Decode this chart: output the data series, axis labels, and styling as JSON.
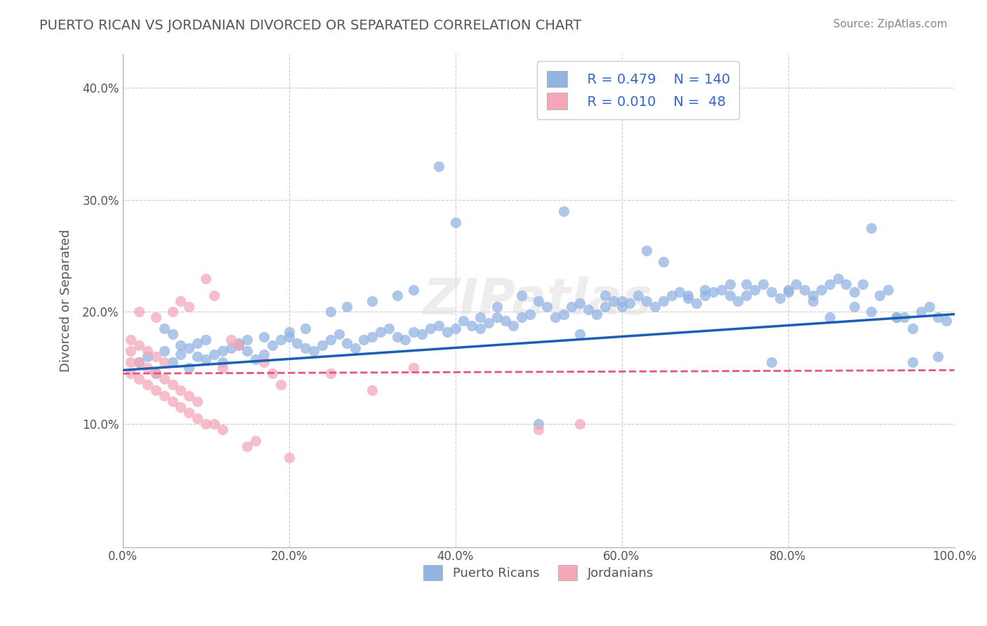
{
  "title": "PUERTO RICAN VS JORDANIAN DIVORCED OR SEPARATED CORRELATION CHART",
  "source_text": "Source: ZipAtlas.com",
  "xlabel": "",
  "ylabel": "Divorced or Separated",
  "xlim": [
    0.0,
    1.0
  ],
  "ylim": [
    -0.01,
    0.43
  ],
  "xticks": [
    0.0,
    0.2,
    0.4,
    0.6,
    0.8,
    1.0
  ],
  "yticks": [
    0.1,
    0.2,
    0.3,
    0.4
  ],
  "xticklabels": [
    "0.0%",
    "20.0%",
    "40.0%",
    "60.0%",
    "80.0%",
    "100.0%"
  ],
  "yticklabels": [
    "10.0%",
    "20.0%",
    "30.0%",
    "40.0%"
  ],
  "watermark": "ZIPatlas",
  "legend_labels": [
    "Puerto Ricans",
    "Jordanians"
  ],
  "blue_R": "0.479",
  "blue_N": "140",
  "pink_R": "0.010",
  "pink_N": "48",
  "blue_color": "#92b4e3",
  "pink_color": "#f4a7b9",
  "blue_line_color": "#1a5fb4",
  "pink_line_color": "#e75480",
  "title_color": "#555555",
  "axis_label_color": "#555555",
  "legend_text_color": "#3366cc",
  "grid_color": "#cccccc",
  "background_color": "#ffffff",
  "blue_scatter_x": [
    0.02,
    0.03,
    0.04,
    0.05,
    0.06,
    0.07,
    0.08,
    0.09,
    0.1,
    0.11,
    0.12,
    0.13,
    0.14,
    0.15,
    0.16,
    0.17,
    0.18,
    0.19,
    0.2,
    0.21,
    0.22,
    0.23,
    0.24,
    0.25,
    0.26,
    0.27,
    0.28,
    0.29,
    0.3,
    0.31,
    0.32,
    0.33,
    0.34,
    0.35,
    0.36,
    0.37,
    0.38,
    0.39,
    0.4,
    0.41,
    0.42,
    0.43,
    0.44,
    0.45,
    0.46,
    0.47,
    0.48,
    0.49,
    0.5,
    0.51,
    0.52,
    0.53,
    0.54,
    0.55,
    0.56,
    0.57,
    0.58,
    0.59,
    0.6,
    0.61,
    0.62,
    0.63,
    0.64,
    0.65,
    0.66,
    0.67,
    0.68,
    0.69,
    0.7,
    0.71,
    0.72,
    0.73,
    0.74,
    0.75,
    0.76,
    0.77,
    0.78,
    0.79,
    0.8,
    0.81,
    0.82,
    0.83,
    0.84,
    0.85,
    0.86,
    0.87,
    0.88,
    0.89,
    0.9,
    0.91,
    0.92,
    0.93,
    0.94,
    0.95,
    0.96,
    0.97,
    0.98,
    0.99,
    0.05,
    0.06,
    0.07,
    0.08,
    0.09,
    0.1,
    0.12,
    0.14,
    0.15,
    0.17,
    0.2,
    0.22,
    0.25,
    0.27,
    0.3,
    0.33,
    0.35,
    0.38,
    0.4,
    0.43,
    0.45,
    0.48,
    0.5,
    0.53,
    0.55,
    0.58,
    0.6,
    0.63,
    0.65,
    0.68,
    0.7,
    0.73,
    0.75,
    0.78,
    0.8,
    0.83,
    0.85,
    0.88,
    0.9,
    0.93,
    0.95,
    0.98
  ],
  "blue_scatter_y": [
    0.155,
    0.16,
    0.145,
    0.165,
    0.155,
    0.17,
    0.15,
    0.16,
    0.158,
    0.162,
    0.155,
    0.168,
    0.172,
    0.165,
    0.158,
    0.162,
    0.17,
    0.175,
    0.178,
    0.172,
    0.168,
    0.165,
    0.17,
    0.175,
    0.18,
    0.172,
    0.168,
    0.175,
    0.178,
    0.182,
    0.185,
    0.178,
    0.175,
    0.182,
    0.18,
    0.185,
    0.188,
    0.182,
    0.185,
    0.192,
    0.188,
    0.185,
    0.19,
    0.195,
    0.192,
    0.188,
    0.195,
    0.198,
    0.1,
    0.205,
    0.195,
    0.198,
    0.205,
    0.208,
    0.202,
    0.198,
    0.205,
    0.21,
    0.205,
    0.208,
    0.215,
    0.21,
    0.205,
    0.21,
    0.215,
    0.218,
    0.212,
    0.208,
    0.215,
    0.218,
    0.22,
    0.215,
    0.21,
    0.215,
    0.22,
    0.225,
    0.218,
    0.212,
    0.218,
    0.225,
    0.22,
    0.215,
    0.22,
    0.225,
    0.23,
    0.225,
    0.218,
    0.225,
    0.275,
    0.215,
    0.22,
    0.195,
    0.195,
    0.185,
    0.2,
    0.205,
    0.195,
    0.192,
    0.185,
    0.18,
    0.162,
    0.168,
    0.172,
    0.175,
    0.165,
    0.17,
    0.175,
    0.178,
    0.182,
    0.185,
    0.2,
    0.205,
    0.21,
    0.215,
    0.22,
    0.33,
    0.28,
    0.195,
    0.205,
    0.215,
    0.21,
    0.29,
    0.18,
    0.215,
    0.21,
    0.255,
    0.245,
    0.215,
    0.22,
    0.225,
    0.225,
    0.155,
    0.22,
    0.21,
    0.195,
    0.205,
    0.2,
    0.195,
    0.155,
    0.16
  ],
  "pink_scatter_x": [
    0.01,
    0.01,
    0.01,
    0.01,
    0.02,
    0.02,
    0.02,
    0.02,
    0.03,
    0.03,
    0.03,
    0.04,
    0.04,
    0.04,
    0.04,
    0.05,
    0.05,
    0.05,
    0.06,
    0.06,
    0.06,
    0.07,
    0.07,
    0.07,
    0.08,
    0.08,
    0.08,
    0.09,
    0.09,
    0.1,
    0.1,
    0.11,
    0.11,
    0.12,
    0.12,
    0.13,
    0.14,
    0.15,
    0.16,
    0.17,
    0.18,
    0.19,
    0.2,
    0.25,
    0.3,
    0.35,
    0.5,
    0.55
  ],
  "pink_scatter_y": [
    0.145,
    0.155,
    0.165,
    0.175,
    0.14,
    0.155,
    0.17,
    0.2,
    0.135,
    0.15,
    0.165,
    0.13,
    0.145,
    0.16,
    0.195,
    0.125,
    0.14,
    0.155,
    0.12,
    0.135,
    0.2,
    0.115,
    0.13,
    0.21,
    0.11,
    0.125,
    0.205,
    0.105,
    0.12,
    0.1,
    0.23,
    0.1,
    0.215,
    0.095,
    0.15,
    0.175,
    0.17,
    0.08,
    0.085,
    0.155,
    0.145,
    0.135,
    0.07,
    0.145,
    0.13,
    0.15,
    0.095,
    0.1
  ],
  "blue_line_x": [
    0.0,
    1.0
  ],
  "blue_line_y_start": 0.148,
  "blue_line_y_end": 0.198,
  "pink_line_x": [
    0.0,
    1.0
  ],
  "pink_line_y_start": 0.145,
  "pink_line_y_end": 0.148
}
